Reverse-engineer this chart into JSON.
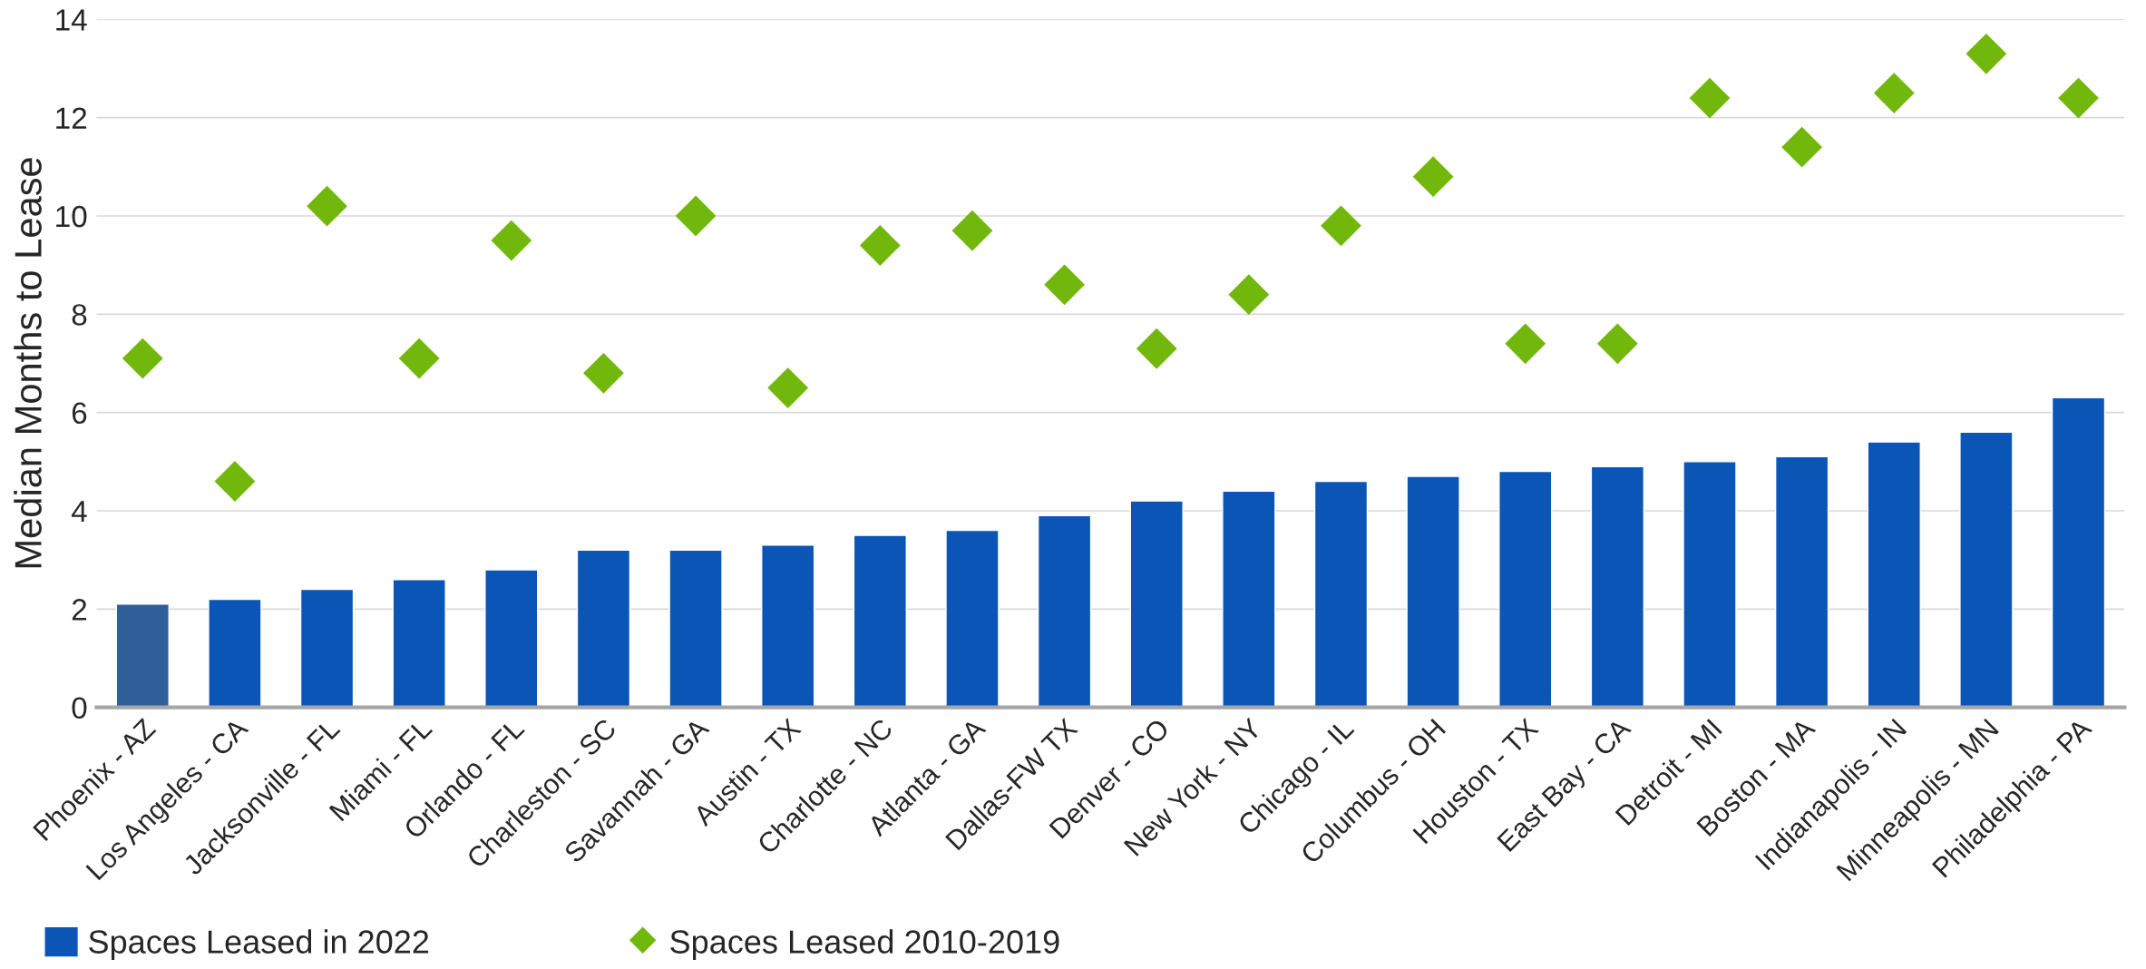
{
  "chart_data": {
    "type": "bar",
    "ylabel": "Median Months to Lease",
    "categories": [
      "Phoenix - AZ",
      "Los Angeles - CA",
      "Jacksonville - FL",
      "Miami - FL",
      "Orlando - FL",
      "Charleston - SC",
      "Savannah - GA",
      "Austin - TX",
      "Charlotte - NC",
      "Atlanta - GA",
      "Dallas-FW TX",
      "Denver - CO",
      "New York - NY",
      "Chicago - IL",
      "Columbus - OH",
      "Houston - TX",
      "East Bay - CA",
      "Detroit - MI",
      "Boston - MA",
      "Indianapolis - IN",
      "Minneapolis - MN",
      "Philadelphia - PA"
    ],
    "series": [
      {
        "name": "Spaces Leased in 2022",
        "color": "#0a55b5",
        "colors": [
          "#2e5f99",
          "#0a55b5",
          "#0a55b5",
          "#0a55b5",
          "#0a55b5",
          "#0a55b5",
          "#0a55b5",
          "#0a55b5",
          "#0a55b5",
          "#0a55b5",
          "#0a55b5",
          "#0a55b5",
          "#0a55b5",
          "#0a55b5",
          "#0a55b5",
          "#0a55b5",
          "#0a55b5",
          "#0a55b5",
          "#0a55b5",
          "#0a55b5",
          "#0a55b5",
          "#0a55b5"
        ],
        "values": [
          2.1,
          2.2,
          2.4,
          2.6,
          2.8,
          3.2,
          3.2,
          3.3,
          3.5,
          3.6,
          3.9,
          4.2,
          4.4,
          4.6,
          4.7,
          4.8,
          4.9,
          5.0,
          5.1,
          5.4,
          5.6,
          6.3
        ]
      },
      {
        "name": "Spaces Leased 2010-2019",
        "type": "scatter",
        "marker": "diamond",
        "color": "#72b80c",
        "values": [
          7.1,
          4.6,
          10.2,
          7.1,
          9.5,
          6.8,
          10.0,
          6.5,
          9.4,
          9.7,
          8.6,
          7.3,
          8.4,
          9.8,
          10.8,
          7.4,
          7.4,
          12.4,
          11.4,
          12.5,
          13.3,
          12.4
        ]
      }
    ],
    "ylim": [
      0,
      14
    ],
    "yticks": [
      0,
      2,
      4,
      6,
      8,
      10,
      12,
      14
    ],
    "grid": "y",
    "legend": "bottom left"
  }
}
